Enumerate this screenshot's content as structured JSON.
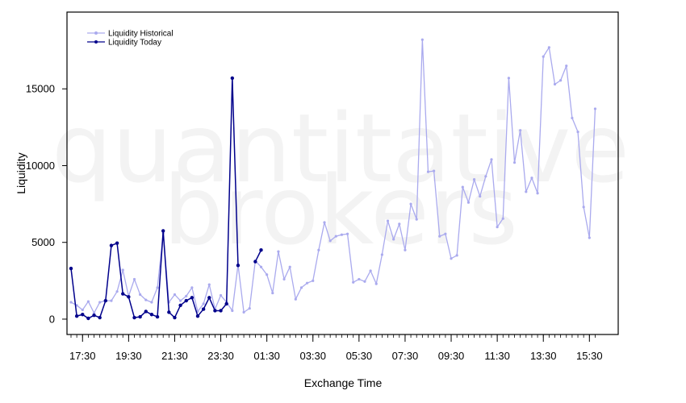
{
  "chart_data": {
    "type": "line",
    "watermark": [
      "quantitative",
      "brokers"
    ],
    "xlabel": "Exchange Time",
    "ylabel": "Liquidity",
    "ylim": [
      -1000,
      20000
    ],
    "yticks": [
      0,
      5000,
      10000,
      15000
    ],
    "ytick_labels": [
      "0",
      "5000",
      "10000",
      "15000"
    ],
    "xlim": [
      -1.7,
      94
    ],
    "xticks": [
      1,
      9,
      17,
      25,
      33,
      41,
      49,
      57,
      65,
      73,
      81,
      89
    ],
    "xtick_labels": [
      "17:30",
      "19:30",
      "21:30",
      "23:30",
      "01:30",
      "03:30",
      "05:30",
      "07:30",
      "09:30",
      "11:30",
      "13:30",
      "15:30"
    ],
    "minor_xticks_every": 1,
    "legend_position": "top-left",
    "series": [
      {
        "name": "Liquidity Historical",
        "color": "#aaaaee",
        "x": [
          -1,
          0,
          1,
          2,
          3,
          4,
          5,
          6,
          7,
          8,
          9,
          10,
          11,
          12,
          13,
          14,
          15,
          16,
          17,
          18,
          19,
          20,
          21,
          22,
          23,
          24,
          25,
          26,
          27,
          28,
          29,
          30,
          31,
          32,
          33,
          34,
          35,
          36,
          37,
          38,
          39,
          40,
          41,
          42,
          43,
          44,
          45,
          46,
          47,
          48,
          49,
          50,
          51,
          52,
          53,
          54,
          55,
          56,
          57,
          58,
          59,
          60,
          61,
          62,
          63,
          64,
          65,
          66,
          67,
          68,
          69,
          70,
          71,
          72,
          73,
          74,
          75,
          76,
          77,
          78,
          79,
          80,
          81,
          82,
          83,
          84,
          85,
          86,
          87,
          88,
          89,
          90
        ],
        "values": [
          1100,
          900,
          600,
          1150,
          400,
          1100,
          1200,
          1200,
          1800,
          3200,
          1500,
          2600,
          1600,
          1250,
          1100,
          2050,
          5600,
          1100,
          1600,
          1200,
          1500,
          2050,
          500,
          1000,
          2250,
          650,
          1550,
          1100,
          550,
          3550,
          450,
          700,
          3800,
          3400,
          2900,
          1700,
          4400,
          2600,
          3400,
          1300,
          2050,
          2350,
          2500,
          4500,
          6300,
          5100,
          5400,
          5500,
          5550,
          2400,
          2600,
          2450,
          3150,
          2300,
          4200,
          6400,
          5200,
          6200,
          4500,
          7500,
          6500,
          18200,
          9600,
          9650,
          5400,
          5550,
          3950,
          4150,
          8600,
          7600,
          9100,
          8000,
          9300,
          10400,
          6000,
          6550,
          15700,
          10200,
          12300,
          8300,
          9200,
          8200,
          17100,
          17700,
          15300,
          15550,
          16500,
          13100,
          12200,
          7300,
          5300,
          13700
        ]
      },
      {
        "name": "Liquidity Today",
        "color": "#00008b",
        "x": [
          -1,
          0,
          1,
          2,
          3,
          4,
          5,
          6,
          7,
          8,
          9,
          10,
          11,
          12,
          13,
          14,
          15,
          16,
          17,
          18,
          19,
          20,
          21,
          22,
          23,
          24,
          25,
          26,
          27,
          28,
          29,
          30,
          31,
          32
        ],
        "values": [
          3300,
          200,
          300,
          50,
          250,
          100,
          1200,
          4800,
          4950,
          1650,
          1450,
          100,
          150,
          500,
          300,
          150,
          5750,
          450,
          100,
          900,
          1200,
          1400,
          200,
          650,
          1400,
          550,
          550,
          1000,
          15700,
          3500,
          null,
          null,
          3750,
          4500
        ]
      }
    ]
  }
}
